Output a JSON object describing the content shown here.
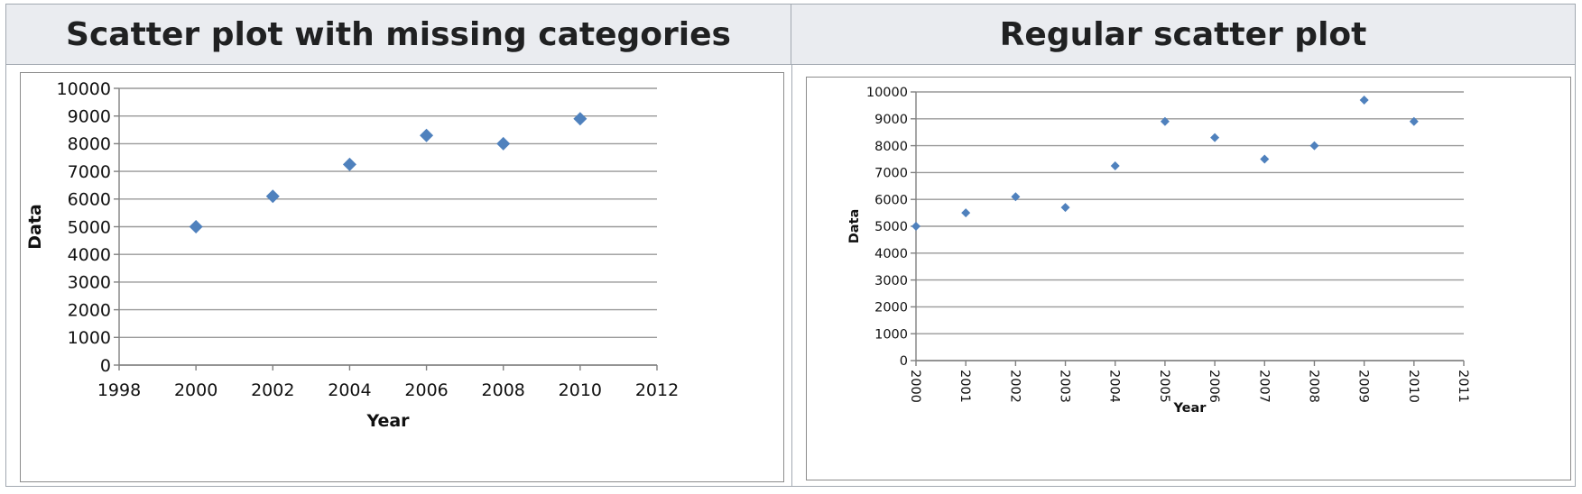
{
  "headers": {
    "left": "Scatter plot with missing categories",
    "right": "Regular scatter plot"
  },
  "colors": {
    "marker": "#4f81bd",
    "grid": "#999999",
    "axis": "#808080"
  },
  "chart_data": [
    {
      "type": "scatter",
      "title": "Scatter plot with missing categories",
      "xlabel": "Year",
      "ylabel": "Data",
      "xlim": [
        1998,
        2012
      ],
      "ylim": [
        0,
        10000
      ],
      "x_ticks": [
        1998,
        2000,
        2002,
        2004,
        2006,
        2008,
        2010,
        2012
      ],
      "y_ticks": [
        0,
        1000,
        2000,
        3000,
        4000,
        5000,
        6000,
        7000,
        8000,
        9000,
        10000
      ],
      "grid": true,
      "series": [
        {
          "name": "Data",
          "x": [
            2000,
            2002,
            2004,
            2006,
            2008,
            2010
          ],
          "y": [
            5000,
            6100,
            7250,
            8300,
            8000,
            8900
          ]
        }
      ]
    },
    {
      "type": "scatter",
      "title": "Regular scatter plot",
      "xlabel": "Year",
      "ylabel": "Data",
      "xlim": [
        2000,
        2011
      ],
      "ylim": [
        0,
        10000
      ],
      "x_ticks": [
        2000,
        2001,
        2002,
        2003,
        2004,
        2005,
        2006,
        2007,
        2008,
        2009,
        2010,
        2011
      ],
      "y_ticks": [
        0,
        1000,
        2000,
        3000,
        4000,
        5000,
        6000,
        7000,
        8000,
        9000,
        10000
      ],
      "grid": true,
      "series": [
        {
          "name": "Data",
          "x": [
            2000,
            2001,
            2002,
            2003,
            2004,
            2005,
            2006,
            2007,
            2008,
            2009,
            2010
          ],
          "y": [
            5000,
            5500,
            6100,
            5700,
            7250,
            8900,
            8300,
            7500,
            8000,
            9700,
            8900
          ]
        }
      ]
    }
  ]
}
